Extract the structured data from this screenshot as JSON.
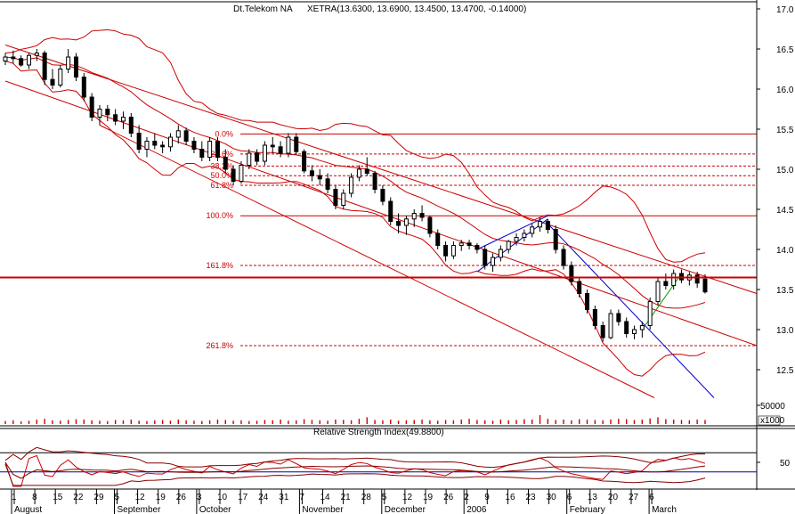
{
  "header": {
    "instrument": "Dt.Telekom NA",
    "quote": "XETRA(13.6300, 13.6900, 13.4500, 13.4700, -0.14000)"
  },
  "rsi_label": "Relative Strength Index(49.8800)",
  "colors": {
    "candle": "#000000",
    "bands": "#cc0000",
    "channel": "#cc0000",
    "fib": "#cc0000",
    "blue_line": "#0000cc",
    "green_line": "#009900",
    "volume": "#cc0000",
    "rsi_ref": "#000099"
  },
  "chart_data": {
    "type": "candlestick",
    "price_axis": {
      "ylim": [
        12.0,
        17.0
      ],
      "ticks": [
        "17.0",
        "16.5",
        "16.0",
        "15.5",
        "15.0",
        "14.5",
        "14.0",
        "13.5",
        "13.0",
        "12.5"
      ]
    },
    "volume_axis": {
      "ticks": [
        "50000"
      ],
      "multiplier": "x1000"
    },
    "rsi_axis": {
      "ticks": [
        "50"
      ]
    },
    "x_axis": {
      "day_ticks": [
        "1",
        "8",
        "15",
        "22",
        "29",
        "5",
        "12",
        "19",
        "26",
        "3",
        "10",
        "17",
        "24",
        "31",
        "7",
        "14",
        "21",
        "28",
        "5",
        "12",
        "19",
        "26",
        "2",
        "9",
        "16",
        "23",
        "30",
        "6",
        "13",
        "20",
        "27",
        "6"
      ],
      "months": [
        {
          "label": "August",
          "idx": 0
        },
        {
          "label": "September",
          "idx": 5
        },
        {
          "label": "October",
          "idx": 9
        },
        {
          "label": "November",
          "idx": 14
        },
        {
          "label": "December",
          "idx": 18
        },
        {
          "label": "2006",
          "idx": 22
        },
        {
          "label": "February",
          "idx": 27
        },
        {
          "label": "March",
          "idx": 31
        }
      ]
    },
    "fib_levels": [
      {
        "label": "0.0%",
        "value": 15.44,
        "solid": true
      },
      {
        "label": "23.6%",
        "value": 15.19,
        "solid": false
      },
      {
        "label": "38.2%",
        "value": 15.04,
        "solid": false
      },
      {
        "label": "50.0%",
        "value": 14.92,
        "solid": false
      },
      {
        "label": "61.8%",
        "value": 14.8,
        "solid": false
      },
      {
        "label": "100.0%",
        "value": 14.42,
        "solid": true
      },
      {
        "label": "161.8%",
        "value": 13.8,
        "solid": false
      },
      {
        "label": "261.8%",
        "value": 12.8,
        "solid": false
      }
    ],
    "horizontal_line": 13.65,
    "candles": [
      [
        16.35,
        16.45,
        16.3,
        16.4
      ],
      [
        16.4,
        16.48,
        16.32,
        16.38
      ],
      [
        16.38,
        16.42,
        16.28,
        16.3
      ],
      [
        16.3,
        16.45,
        16.25,
        16.42
      ],
      [
        16.42,
        16.5,
        16.35,
        16.45
      ],
      [
        16.45,
        16.48,
        16.05,
        16.12
      ],
      [
        16.12,
        16.25,
        16.0,
        16.05
      ],
      [
        16.05,
        16.3,
        16.02,
        16.25
      ],
      [
        16.25,
        16.5,
        16.2,
        16.4
      ],
      [
        16.4,
        16.45,
        16.1,
        16.15
      ],
      [
        16.15,
        16.2,
        15.85,
        15.9
      ],
      [
        15.9,
        15.95,
        15.6,
        15.65
      ],
      [
        15.65,
        15.8,
        15.55,
        15.75
      ],
      [
        15.75,
        15.8,
        15.6,
        15.68
      ],
      [
        15.68,
        15.75,
        15.55,
        15.6
      ],
      [
        15.6,
        15.72,
        15.5,
        15.65
      ],
      [
        15.65,
        15.7,
        15.4,
        15.45
      ],
      [
        15.45,
        15.55,
        15.2,
        15.25
      ],
      [
        15.25,
        15.4,
        15.15,
        15.35
      ],
      [
        15.35,
        15.45,
        15.25,
        15.3
      ],
      [
        15.3,
        15.35,
        15.2,
        15.28
      ],
      [
        15.28,
        15.45,
        15.22,
        15.4
      ],
      [
        15.4,
        15.55,
        15.32,
        15.48
      ],
      [
        15.48,
        15.52,
        15.3,
        15.35
      ],
      [
        15.35,
        15.4,
        15.2,
        15.25
      ],
      [
        15.25,
        15.35,
        15.1,
        15.15
      ],
      [
        15.15,
        15.4,
        15.1,
        15.35
      ],
      [
        15.35,
        15.4,
        15.1,
        15.15
      ],
      [
        15.15,
        15.25,
        14.95,
        15.0
      ],
      [
        15.0,
        15.05,
        14.8,
        14.85
      ],
      [
        14.85,
        15.1,
        14.82,
        15.05
      ],
      [
        15.05,
        15.25,
        15.0,
        15.2
      ],
      [
        15.2,
        15.25,
        15.05,
        15.1
      ],
      [
        15.1,
        15.35,
        15.05,
        15.3
      ],
      [
        15.3,
        15.4,
        15.2,
        15.28
      ],
      [
        15.28,
        15.35,
        15.15,
        15.2
      ],
      [
        15.2,
        15.45,
        15.15,
        15.4
      ],
      [
        15.4,
        15.45,
        15.18,
        15.22
      ],
      [
        15.22,
        15.25,
        14.95,
        14.98
      ],
      [
        14.98,
        15.05,
        14.85,
        14.92
      ],
      [
        14.92,
        15.0,
        14.8,
        14.88
      ],
      [
        14.88,
        14.95,
        14.7,
        14.75
      ],
      [
        14.75,
        14.8,
        14.5,
        14.55
      ],
      [
        14.55,
        14.75,
        14.5,
        14.7
      ],
      [
        14.7,
        14.95,
        14.65,
        14.9
      ],
      [
        14.9,
        15.05,
        14.85,
        15.0
      ],
      [
        15.0,
        15.15,
        14.92,
        14.95
      ],
      [
        14.95,
        14.98,
        14.7,
        14.75
      ],
      [
        14.75,
        14.8,
        14.55,
        14.6
      ],
      [
        14.6,
        14.65,
        14.3,
        14.35
      ],
      [
        14.35,
        14.45,
        14.2,
        14.3
      ],
      [
        14.3,
        14.42,
        14.18,
        14.38
      ],
      [
        14.38,
        14.5,
        14.28,
        14.45
      ],
      [
        14.45,
        14.55,
        14.35,
        14.4
      ],
      [
        14.4,
        14.42,
        14.15,
        14.2
      ],
      [
        14.2,
        14.25,
        14.0,
        14.05
      ],
      [
        14.05,
        14.1,
        13.85,
        13.92
      ],
      [
        13.92,
        14.1,
        13.88,
        14.05
      ],
      [
        14.05,
        14.12,
        13.98,
        14.08
      ],
      [
        14.08,
        14.12,
        14.0,
        14.05
      ],
      [
        14.05,
        14.08,
        13.95,
        14.0
      ],
      [
        14.0,
        14.05,
        13.75,
        13.8
      ],
      [
        13.8,
        13.95,
        13.72,
        13.9
      ],
      [
        13.9,
        14.05,
        13.85,
        14.0
      ],
      [
        14.0,
        14.12,
        13.95,
        14.1
      ],
      [
        14.1,
        14.2,
        14.05,
        14.15
      ],
      [
        14.15,
        14.25,
        14.1,
        14.2
      ],
      [
        14.2,
        14.32,
        14.15,
        14.28
      ],
      [
        14.28,
        14.4,
        14.22,
        14.35
      ],
      [
        14.35,
        14.38,
        14.2,
        14.25
      ],
      [
        14.25,
        14.3,
        13.95,
        14.0
      ],
      [
        14.0,
        14.05,
        13.75,
        13.8
      ],
      [
        13.8,
        13.85,
        13.55,
        13.6
      ],
      [
        13.6,
        13.65,
        13.4,
        13.45
      ],
      [
        13.45,
        13.5,
        13.2,
        13.25
      ],
      [
        13.25,
        13.3,
        13.0,
        13.05
      ],
      [
        13.05,
        13.1,
        12.85,
        12.9
      ],
      [
        12.9,
        13.25,
        12.88,
        13.2
      ],
      [
        13.2,
        13.25,
        13.05,
        13.1
      ],
      [
        13.1,
        13.15,
        12.9,
        12.95
      ],
      [
        12.95,
        13.05,
        12.88,
        13.0
      ],
      [
        13.0,
        13.1,
        12.9,
        13.05
      ],
      [
        13.05,
        13.4,
        13.0,
        13.35
      ],
      [
        13.35,
        13.65,
        13.3,
        13.6
      ],
      [
        13.6,
        13.7,
        13.5,
        13.55
      ],
      [
        13.55,
        13.75,
        13.5,
        13.7
      ],
      [
        13.7,
        13.75,
        13.58,
        13.62
      ],
      [
        13.62,
        13.72,
        13.55,
        13.68
      ],
      [
        13.68,
        13.72,
        13.52,
        13.58
      ],
      [
        13.63,
        13.69,
        13.45,
        13.47
      ]
    ],
    "volume": [
      8,
      10,
      7,
      9,
      12,
      14,
      10,
      9,
      11,
      13,
      12,
      10,
      9,
      8,
      11,
      10,
      12,
      9,
      8,
      10,
      11,
      9,
      12,
      10,
      9,
      8,
      10,
      12,
      11,
      9,
      10,
      8,
      9,
      11,
      10,
      12,
      9,
      10,
      13,
      11,
      10,
      9,
      12,
      11,
      10,
      14,
      18,
      11,
      10,
      12,
      9,
      10,
      11,
      12,
      10,
      9,
      11,
      10,
      12,
      14,
      11,
      10,
      9,
      12,
      10,
      11,
      13,
      12,
      24,
      14,
      11,
      12,
      10,
      13,
      12,
      11,
      10,
      12,
      14,
      13,
      11,
      12,
      15,
      18,
      13,
      12,
      11,
      10,
      12,
      11
    ]
  }
}
